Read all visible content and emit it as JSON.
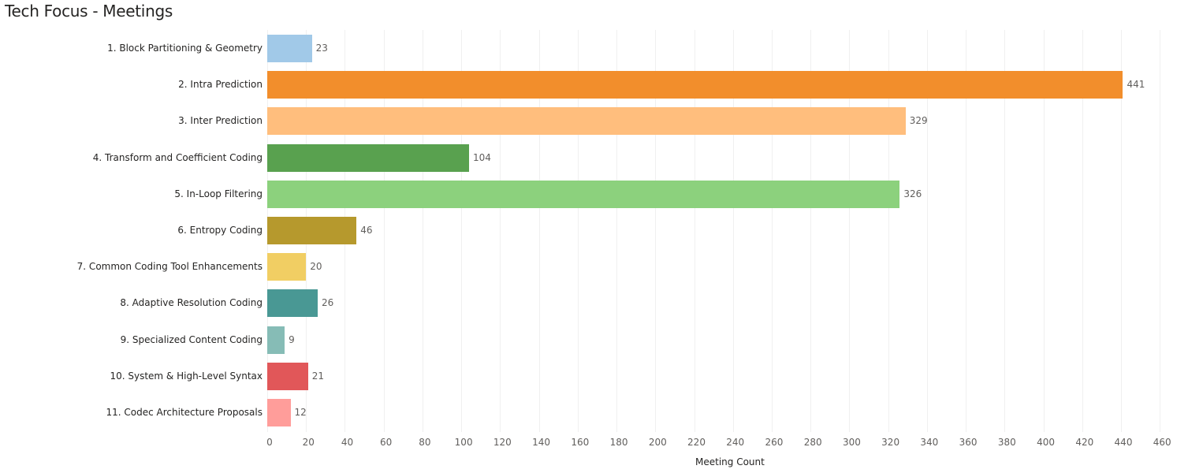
{
  "title": "Tech Focus - Meetings",
  "chart_data": {
    "type": "bar",
    "orientation": "horizontal",
    "title": "Tech Focus - Meetings",
    "xlabel": "Meeting Count",
    "ylabel": "",
    "xlim": [
      0,
      475
    ],
    "grid": true,
    "legend": "none",
    "xticks": [
      0,
      20,
      40,
      60,
      80,
      100,
      120,
      140,
      160,
      180,
      200,
      220,
      240,
      260,
      280,
      300,
      320,
      340,
      360,
      380,
      400,
      420,
      440,
      460
    ],
    "categories": [
      "1. Block Partitioning & Geometry",
      "2. Intra Prediction",
      "3. Inter Prediction",
      "4. Transform and Coefficient Coding",
      "5. In-Loop Filtering",
      "6. Entropy Coding",
      "7. Common Coding Tool Enhancements",
      "8. Adaptive Resolution Coding",
      "9. Specialized Content Coding",
      "10. System & High-Level Syntax",
      "11. Codec Architecture Proposals"
    ],
    "values": [
      23,
      441,
      329,
      104,
      326,
      46,
      20,
      26,
      9,
      21,
      12
    ],
    "colors": [
      "#a1c9e8",
      "#f28e2c",
      "#ffbe7d",
      "#59a14f",
      "#8cd17d",
      "#b6992d",
      "#f1ce63",
      "#499894",
      "#86bcb6",
      "#e15759",
      "#ff9d9a"
    ]
  }
}
